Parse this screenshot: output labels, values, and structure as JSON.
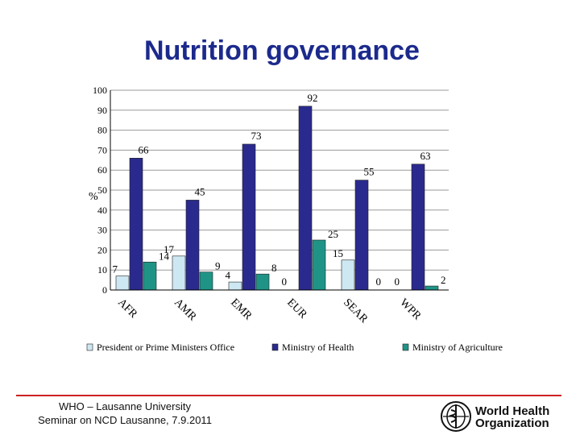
{
  "slide": {
    "title": "Nutrition governance",
    "footer_line1": "WHO – Lausanne University",
    "footer_line2": "Seminar on NCD Lausanne, 7.9.2011",
    "logo_line1": "World Health",
    "logo_line2": "Organization"
  },
  "chart_data": {
    "type": "bar",
    "title": "",
    "xlabel": "",
    "ylabel": "%",
    "ylim": [
      0,
      100
    ],
    "yticks": [
      0,
      10,
      20,
      30,
      40,
      50,
      60,
      70,
      80,
      90,
      100
    ],
    "grid": true,
    "legend": "bottom",
    "categories": [
      "AFR",
      "AMR",
      "EMR",
      "EUR",
      "SEAR",
      "WPR"
    ],
    "series": [
      {
        "name": "President or Prime Ministers Office",
        "color": "#cde8f2",
        "values": [
          7,
          17,
          4,
          0,
          15,
          0
        ]
      },
      {
        "name": "Ministry of Health",
        "color": "#2a2a8e",
        "values": [
          66,
          45,
          73,
          92,
          55,
          63
        ]
      },
      {
        "name": "Ministry of Agriculture",
        "color": "#1f9486",
        "values": [
          14,
          9,
          8,
          25,
          0,
          2
        ]
      }
    ]
  }
}
